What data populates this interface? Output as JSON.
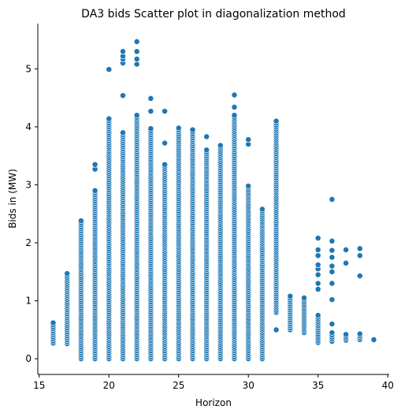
{
  "chart_data": {
    "type": "scatter",
    "title": "DA3 bids Scatter plot in diagonalization method",
    "xlabel": "Horizon",
    "ylabel": "Bids in (MW)",
    "xlim": [
      14.9,
      40.1
    ],
    "ylim": [
      -0.27,
      5.78
    ],
    "xticks": [
      15,
      20,
      25,
      30,
      35,
      40
    ],
    "yticks": [
      0,
      1,
      2,
      3,
      4,
      5
    ],
    "grid": false,
    "legend": "none",
    "color": "#1f77b4",
    "columns": [
      {
        "x": 16,
        "ranges": [
          [
            0.27,
            0.62
          ]
        ],
        "extra": []
      },
      {
        "x": 17,
        "ranges": [
          [
            0.26,
            1.47
          ]
        ],
        "extra": []
      },
      {
        "x": 18,
        "ranges": [
          [
            0.0,
            2.38
          ]
        ],
        "extra": []
      },
      {
        "x": 19,
        "ranges": [
          [
            0.0,
            2.9
          ]
        ],
        "extra": [
          3.27,
          3.35
        ]
      },
      {
        "x": 20,
        "ranges": [
          [
            0.0,
            4.14
          ]
        ],
        "extra": [
          4.99
        ]
      },
      {
        "x": 21,
        "ranges": [
          [
            0.0,
            3.9
          ]
        ],
        "extra": [
          4.54,
          5.1,
          5.17,
          5.22,
          5.3
        ]
      },
      {
        "x": 22,
        "ranges": [
          [
            0.0,
            4.2
          ]
        ],
        "extra": [
          5.08,
          5.17,
          5.3,
          5.47
        ]
      },
      {
        "x": 23,
        "ranges": [
          [
            0.0,
            3.97
          ]
        ],
        "extra": [
          4.27,
          4.49
        ]
      },
      {
        "x": 24,
        "ranges": [
          [
            0.0,
            3.35
          ]
        ],
        "extra": [
          3.72,
          4.27
        ]
      },
      {
        "x": 25,
        "ranges": [
          [
            0.0,
            3.98
          ]
        ],
        "extra": []
      },
      {
        "x": 26,
        "ranges": [
          [
            0.0,
            3.95
          ]
        ],
        "extra": []
      },
      {
        "x": 27,
        "ranges": [
          [
            0.0,
            3.6
          ]
        ],
        "extra": [
          3.83
        ]
      },
      {
        "x": 28,
        "ranges": [
          [
            0.0,
            3.68
          ]
        ],
        "extra": []
      },
      {
        "x": 29,
        "ranges": [
          [
            0.0,
            4.2
          ]
        ],
        "extra": [
          4.34,
          4.55
        ]
      },
      {
        "x": 30,
        "ranges": [
          [
            0.0,
            2.98
          ]
        ],
        "extra": [
          3.7,
          3.78
        ]
      },
      {
        "x": 31,
        "ranges": [
          [
            0.0,
            2.58
          ]
        ],
        "extra": []
      },
      {
        "x": 32,
        "ranges": [
          [
            0.8,
            4.1
          ]
        ],
        "extra": [
          0.5
        ]
      },
      {
        "x": 33,
        "ranges": [
          [
            0.5,
            1.08
          ]
        ],
        "extra": []
      },
      {
        "x": 34,
        "ranges": [
          [
            0.45,
            1.05
          ]
        ],
        "extra": []
      },
      {
        "x": 35,
        "ranges": [
          [
            0.28,
            0.75
          ]
        ],
        "extra": [
          1.2,
          1.3,
          1.45,
          1.55,
          1.62,
          1.78,
          1.88,
          2.08
        ]
      },
      {
        "x": 36,
        "ranges": [
          [
            0.3,
            0.45
          ]
        ],
        "extra": [
          0.6,
          1.02,
          1.3,
          1.5,
          1.6,
          1.75,
          1.87,
          2.03,
          2.75
        ]
      },
      {
        "x": 37,
        "ranges": [
          [
            0.32,
            0.42
          ]
        ],
        "extra": [
          1.65,
          1.88
        ]
      },
      {
        "x": 38,
        "ranges": [
          [
            0.33,
            0.43
          ]
        ],
        "extra": [
          1.43,
          1.78,
          1.9
        ]
      },
      {
        "x": 39,
        "ranges": [
          [
            0.32,
            0.33
          ]
        ],
        "extra": []
      }
    ]
  }
}
